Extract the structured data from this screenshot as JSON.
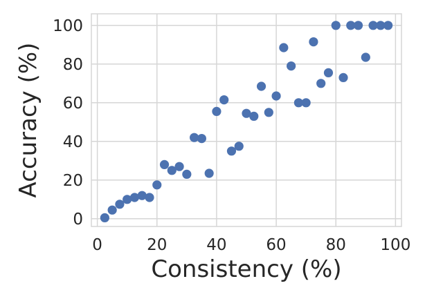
{
  "chart_data": {
    "type": "scatter",
    "title": "",
    "xlabel": "Consistency (%)",
    "ylabel": "Accuracy (%)",
    "xlim": [
      -2,
      102
    ],
    "ylim": [
      -4,
      106
    ],
    "xticks": [
      0,
      20,
      40,
      60,
      80,
      100
    ],
    "yticks": [
      0,
      20,
      40,
      60,
      80,
      100
    ],
    "xtick_labels": [
      "0",
      "20",
      "40",
      "60",
      "80",
      "100"
    ],
    "ytick_labels": [
      "0",
      "20",
      "40",
      "60",
      "80",
      "100"
    ],
    "grid": true,
    "legend": "none",
    "color": "#4c72b0",
    "points": [
      {
        "x": 2.5,
        "y": 0.5
      },
      {
        "x": 5,
        "y": 4.5
      },
      {
        "x": 7.5,
        "y": 7.5
      },
      {
        "x": 10,
        "y": 10
      },
      {
        "x": 12.5,
        "y": 11
      },
      {
        "x": 15,
        "y": 12
      },
      {
        "x": 17.5,
        "y": 11
      },
      {
        "x": 20,
        "y": 17.5
      },
      {
        "x": 22.5,
        "y": 28
      },
      {
        "x": 25,
        "y": 25
      },
      {
        "x": 27.5,
        "y": 27
      },
      {
        "x": 30,
        "y": 23
      },
      {
        "x": 32.5,
        "y": 42
      },
      {
        "x": 35,
        "y": 41.5
      },
      {
        "x": 37.5,
        "y": 23.5
      },
      {
        "x": 40,
        "y": 55.5
      },
      {
        "x": 42.5,
        "y": 61.5
      },
      {
        "x": 45,
        "y": 35
      },
      {
        "x": 47.5,
        "y": 37.5
      },
      {
        "x": 50,
        "y": 54.5
      },
      {
        "x": 52.5,
        "y": 53
      },
      {
        "x": 55,
        "y": 68.5
      },
      {
        "x": 57.5,
        "y": 55
      },
      {
        "x": 60,
        "y": 63.5
      },
      {
        "x": 62.5,
        "y": 88.5
      },
      {
        "x": 65,
        "y": 79
      },
      {
        "x": 67.5,
        "y": 60
      },
      {
        "x": 70,
        "y": 60
      },
      {
        "x": 72.5,
        "y": 91.5
      },
      {
        "x": 75,
        "y": 70
      },
      {
        "x": 77.5,
        "y": 75.5
      },
      {
        "x": 80,
        "y": 100
      },
      {
        "x": 82.5,
        "y": 73
      },
      {
        "x": 85,
        "y": 100
      },
      {
        "x": 87.5,
        "y": 100
      },
      {
        "x": 90,
        "y": 83.5
      },
      {
        "x": 92.5,
        "y": 100
      },
      {
        "x": 95,
        "y": 100
      },
      {
        "x": 97.5,
        "y": 100
      }
    ]
  }
}
